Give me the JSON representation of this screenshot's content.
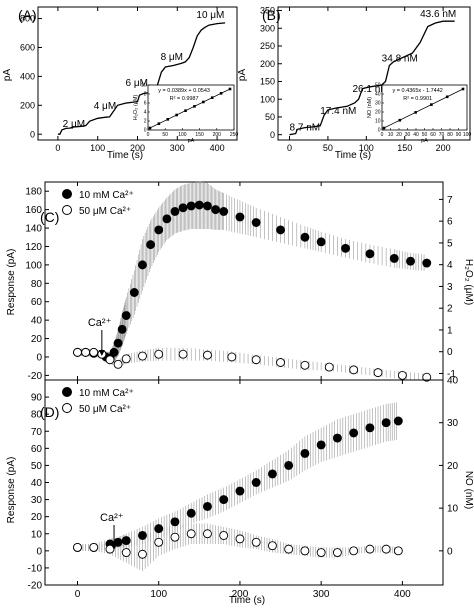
{
  "panels": {
    "a": {
      "label": "(A)",
      "xlabel": "Time (s)",
      "ylabel": "pA",
      "xlim": [
        -50,
        450
      ],
      "ylim": [
        -40,
        880
      ],
      "xticks": [
        0,
        100,
        200,
        300,
        400
      ],
      "yticks": [
        0,
        200,
        400,
        600,
        800
      ],
      "annotations": [
        {
          "text": "2 μM",
          "x": 12,
          "y": 50
        },
        {
          "text": "4 μM",
          "x": 90,
          "y": 175
        },
        {
          "text": "6 μM",
          "x": 170,
          "y": 335
        },
        {
          "text": "8 μM",
          "x": 258,
          "y": 515
        },
        {
          "text": "10 μM",
          "x": 348,
          "y": 805
        }
      ],
      "inset": {
        "equation": "y = 0.0389x + 0.0543",
        "r2": "R² = 0.9987",
        "xlabel": "pA",
        "ylabel": "H₂O₂ (μM)",
        "xticks": [
          0,
          50,
          100,
          150,
          200,
          250
        ],
        "yticks": [
          0,
          2,
          4,
          6,
          8,
          10
        ]
      }
    },
    "b": {
      "label": "(B)",
      "xlabel": "Time (s)",
      "ylabel": "pA",
      "xlim": [
        -15,
        235
      ],
      "ylim": [
        -15,
        360
      ],
      "xticks": [
        0,
        50,
        100,
        150,
        200
      ],
      "yticks": [
        0,
        50,
        100,
        150,
        200,
        250,
        300,
        350
      ],
      "annotations": [
        {
          "text": "8.7 nM",
          "x": 0,
          "y": 12
        },
        {
          "text": "17.4 nM",
          "x": 40,
          "y": 58
        },
        {
          "text": "26.1 nM",
          "x": 82,
          "y": 120
        },
        {
          "text": "34.8 nM",
          "x": 120,
          "y": 207
        },
        {
          "text": "43.6 nM",
          "x": 170,
          "y": 332
        }
      ],
      "inset": {
        "equation": "y = 0.4365x - 1.7442",
        "r2": "R² = 0.9901",
        "xlabel": "pA",
        "ylabel": "NO (nM)",
        "xticks": [
          0,
          10,
          20,
          30,
          40,
          50,
          60,
          70,
          80,
          90,
          100
        ],
        "yticks": [
          0,
          10,
          20,
          30,
          40,
          50
        ]
      }
    },
    "c": {
      "label": "(C)",
      "ylabel": "Response (pA)",
      "y2label": "H₂O₂ (μM)",
      "xlim": [
        -40,
        450
      ],
      "ylim": [
        -25,
        190
      ],
      "yticks": [
        -20,
        0,
        20,
        40,
        60,
        80,
        100,
        120,
        140,
        160,
        180
      ],
      "y2ticks": [
        -1,
        0,
        1,
        2,
        3,
        4,
        5,
        6,
        7
      ],
      "legend": [
        "10 mM Ca²⁺",
        "50 μM Ca²⁺"
      ],
      "arrow_label": "Ca²⁺"
    },
    "d": {
      "label": "(D)",
      "ylabel": "Response (pA)",
      "y2label": "NO (nM)",
      "xlabel": "Time (s)",
      "xlim": [
        -40,
        450
      ],
      "ylim": [
        -20,
        100
      ],
      "xticks": [
        0,
        100,
        200,
        300,
        400
      ],
      "yticks": [
        -20,
        -10,
        0,
        10,
        20,
        30,
        40,
        50,
        60,
        70,
        80,
        90
      ],
      "y2ticks": [
        0,
        10,
        20,
        30,
        40
      ],
      "legend": [
        "10 mM Ca²⁺",
        "50 μM Ca²⁺"
      ],
      "arrow_label": "Ca²⁺"
    }
  },
  "chart_data": [
    {
      "type": "line",
      "panel": "A",
      "xlabel": "Time (s)",
      "ylabel": "pA",
      "xlim": [
        -50,
        450
      ],
      "ylim": [
        -40,
        880
      ],
      "x": [
        0,
        5,
        10,
        20,
        30,
        40,
        60,
        70,
        80,
        100,
        120,
        130,
        150,
        170,
        190,
        200,
        205,
        215,
        230,
        240,
        250,
        260,
        270,
        290,
        310,
        320,
        330,
        340,
        350,
        360,
        370,
        380,
        400,
        420
      ],
      "y": [
        0,
        0,
        30,
        40,
        42,
        50,
        55,
        60,
        90,
        110,
        118,
        120,
        200,
        215,
        222,
        225,
        270,
        282,
        288,
        295,
        340,
        430,
        465,
        475,
        490,
        500,
        530,
        600,
        680,
        720,
        740,
        755,
        765,
        770
      ]
    },
    {
      "type": "line",
      "panel": "B",
      "xlabel": "Time (s)",
      "ylabel": "pA",
      "xlim": [
        -15,
        235
      ],
      "ylim": [
        -15,
        360
      ],
      "x": [
        0,
        8,
        10,
        20,
        30,
        40,
        45,
        50,
        60,
        75,
        85,
        90,
        95,
        105,
        120,
        125,
        130,
        135,
        145,
        160,
        170,
        180,
        190,
        200,
        215
      ],
      "y": [
        0,
        3,
        15,
        20,
        22,
        25,
        55,
        70,
        75,
        80,
        90,
        100,
        130,
        135,
        140,
        150,
        195,
        205,
        215,
        230,
        260,
        305,
        315,
        320,
        320
      ]
    },
    {
      "type": "scatter",
      "panel": "C",
      "ylabel": "Response (pA)",
      "y2label": "H₂O₂ (μM)",
      "xlim": [
        -40,
        450
      ],
      "ylim": [
        -25,
        190
      ],
      "series": [
        {
          "name": "10 mM Ca²⁺",
          "marker": "filled-circle",
          "x": [
            0,
            10,
            20,
            30,
            35,
            40,
            45,
            50,
            55,
            60,
            70,
            80,
            90,
            100,
            110,
            120,
            130,
            140,
            150,
            160,
            170,
            180,
            200,
            220,
            250,
            280,
            300,
            330,
            360,
            390,
            410,
            430
          ],
          "y": [
            5,
            5,
            4,
            3,
            0,
            -1,
            5,
            15,
            30,
            45,
            70,
            100,
            122,
            138,
            150,
            158,
            162,
            164,
            165,
            164,
            160,
            158,
            152,
            146,
            138,
            130,
            125,
            118,
            112,
            107,
            104,
            102
          ],
          "error": [
            4,
            4,
            4,
            4,
            6,
            6,
            10,
            14,
            18,
            20,
            24,
            28,
            26,
            24,
            23,
            24,
            25,
            25,
            26,
            25,
            22,
            20,
            18,
            16,
            14,
            12,
            11,
            10,
            10,
            10,
            9,
            9
          ]
        },
        {
          "name": "50 μM Ca²⁺",
          "marker": "open-circle",
          "x": [
            0,
            10,
            20,
            30,
            40,
            50,
            60,
            80,
            100,
            130,
            160,
            190,
            220,
            250,
            280,
            310,
            340,
            370,
            400,
            430
          ],
          "y": [
            5,
            5,
            5,
            3,
            -3,
            -8,
            -2,
            1,
            3,
            3,
            2,
            0,
            -3,
            -6,
            -9,
            -11,
            -14,
            -17,
            -20,
            -22
          ],
          "error": [
            4,
            4,
            4,
            4,
            4,
            4,
            5,
            6,
            7,
            7,
            6,
            6,
            5,
            5,
            5,
            4,
            4,
            4,
            4,
            4
          ]
        }
      ]
    },
    {
      "type": "scatter",
      "panel": "D",
      "xlabel": "Time (s)",
      "ylabel": "Response (pA)",
      "y2label": "NO (nM)",
      "xlim": [
        -40,
        450
      ],
      "ylim": [
        -20,
        100
      ],
      "series": [
        {
          "name": "10 mM Ca²⁺",
          "marker": "filled-circle",
          "x": [
            0,
            20,
            40,
            50,
            60,
            80,
            100,
            120,
            140,
            160,
            180,
            200,
            220,
            240,
            260,
            280,
            300,
            320,
            340,
            360,
            380,
            395
          ],
          "y": [
            2,
            2,
            4,
            5,
            6,
            9,
            13,
            17,
            22,
            26,
            30,
            35,
            40,
            45,
            50,
            57,
            62,
            66,
            69,
            72,
            75,
            76
          ],
          "error": [
            2,
            2,
            3,
            3,
            4,
            5,
            6,
            6,
            6,
            7,
            7,
            7,
            7,
            8,
            9,
            10,
            10,
            11,
            11,
            11,
            11,
            11
          ]
        },
        {
          "name": "50 μM Ca²⁺",
          "marker": "open-circle",
          "x": [
            0,
            20,
            40,
            60,
            80,
            100,
            120,
            140,
            160,
            180,
            200,
            220,
            240,
            260,
            280,
            300,
            320,
            340,
            360,
            380,
            395
          ],
          "y": [
            2,
            2,
            1,
            -1,
            -2,
            5,
            8,
            10,
            10,
            9,
            7,
            5,
            3,
            1,
            0,
            -1,
            -1,
            0,
            1,
            1,
            0
          ],
          "error": [
            2,
            2,
            3,
            6,
            10,
            8,
            7,
            6,
            6,
            5,
            5,
            4,
            4,
            3,
            3,
            3,
            3,
            2,
            2,
            2,
            2
          ]
        }
      ]
    }
  ]
}
